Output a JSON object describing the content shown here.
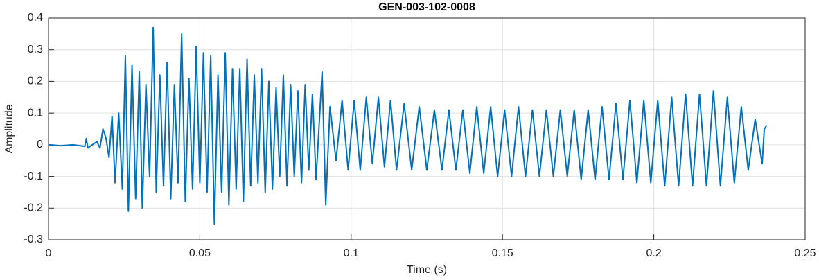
{
  "chart_data": {
    "type": "line",
    "title": "GEN-003-102-0008",
    "x_label": "Time (s)",
    "y_label": "Amplitude",
    "color": "#0072bd",
    "grid": true,
    "xlim": [
      0,
      0.25
    ],
    "ylim": [
      -0.3,
      0.4
    ],
    "xticks": [
      0,
      0.05,
      0.1,
      0.15,
      0.2,
      0.25
    ],
    "yticks": [
      -0.3,
      -0.2,
      -0.1,
      0,
      0.1,
      0.2,
      0.3,
      0.4
    ],
    "x": [
      0,
      0.004,
      0.008,
      0.012,
      0.0125,
      0.013,
      0.016,
      0.017,
      0.018,
      0.019,
      0.02,
      0.021,
      0.022,
      0.0232,
      0.0244,
      0.0254,
      0.0264,
      0.0276,
      0.0288,
      0.03,
      0.031,
      0.0322,
      0.0334,
      0.0346,
      0.0356,
      0.0368,
      0.038,
      0.0392,
      0.0404,
      0.0416,
      0.0428,
      0.044,
      0.0452,
      0.0464,
      0.0476,
      0.0488,
      0.05,
      0.0512,
      0.0524,
      0.0536,
      0.0548,
      0.056,
      0.0572,
      0.0584,
      0.0596,
      0.0608,
      0.062,
      0.0632,
      0.0644,
      0.0656,
      0.0668,
      0.068,
      0.0692,
      0.0704,
      0.0716,
      0.0728,
      0.074,
      0.0752,
      0.0764,
      0.0776,
      0.0788,
      0.08,
      0.0812,
      0.0824,
      0.0836,
      0.0848,
      0.086,
      0.0872,
      0.0884,
      0.0904,
      0.0916,
      0.093,
      0.095,
      0.097,
      0.099,
      0.101,
      0.103,
      0.105,
      0.107,
      0.109,
      0.111,
      0.113,
      0.115,
      0.1175,
      0.12,
      0.1225,
      0.125,
      0.1275,
      0.13,
      0.1323,
      0.1346,
      0.1369,
      0.1392,
      0.1415,
      0.1438,
      0.1461,
      0.1484,
      0.1507,
      0.153,
      0.1553,
      0.1576,
      0.1599,
      0.1622,
      0.1645,
      0.1668,
      0.1691,
      0.1714,
      0.1737,
      0.176,
      0.1783,
      0.1806,
      0.1829,
      0.1852,
      0.1875,
      0.1898,
      0.1921,
      0.1944,
      0.1967,
      0.199,
      0.2013,
      0.2036,
      0.2059,
      0.2082,
      0.2105,
      0.2128,
      0.2151,
      0.2174,
      0.2197,
      0.222,
      0.2243,
      0.2266,
      0.2289,
      0.2312,
      0.2335,
      0.2358,
      0.2365,
      0.2372
    ],
    "values": [
      0,
      -0.003,
      0,
      -0.005,
      0.02,
      -0.01,
      0.01,
      -0.01,
      0.05,
      0.02,
      -0.04,
      0.09,
      -0.12,
      0.1,
      -0.14,
      0.28,
      -0.21,
      0.25,
      -0.17,
      0.23,
      -0.2,
      0.19,
      -0.1,
      0.37,
      -0.15,
      0.22,
      -0.13,
      0.26,
      -0.17,
      0.19,
      -0.12,
      0.35,
      -0.18,
      0.21,
      -0.14,
      0.31,
      -0.12,
      0.29,
      -0.15,
      0.28,
      -0.25,
      0.22,
      -0.15,
      0.29,
      -0.19,
      0.24,
      -0.14,
      0.24,
      -0.18,
      0.27,
      -0.13,
      0.22,
      -0.12,
      0.24,
      -0.15,
      0.2,
      -0.14,
      0.18,
      -0.1,
      0.22,
      -0.13,
      0.19,
      -0.1,
      0.17,
      -0.12,
      0.19,
      -0.08,
      0.16,
      -0.11,
      0.23,
      -0.19,
      0.12,
      -0.05,
      0.14,
      -0.08,
      0.14,
      -0.08,
      0.15,
      -0.06,
      0.15,
      -0.07,
      0.14,
      -0.08,
      0.13,
      -0.08,
      0.12,
      -0.08,
      0.11,
      -0.08,
      0.11,
      -0.08,
      0.11,
      -0.09,
      0.12,
      -0.09,
      0.12,
      -0.1,
      0.11,
      -0.1,
      0.12,
      -0.1,
      0.11,
      -0.1,
      0.11,
      -0.1,
      0.11,
      -0.1,
      0.11,
      -0.11,
      0.11,
      -0.11,
      0.12,
      -0.11,
      0.13,
      -0.11,
      0.14,
      -0.12,
      0.14,
      -0.12,
      0.14,
      -0.13,
      0.15,
      -0.13,
      0.16,
      -0.13,
      0.16,
      -0.13,
      0.17,
      -0.13,
      0.15,
      -0.12,
      0.12,
      -0.08,
      0.08,
      -0.06,
      0.05,
      0.06
    ]
  }
}
